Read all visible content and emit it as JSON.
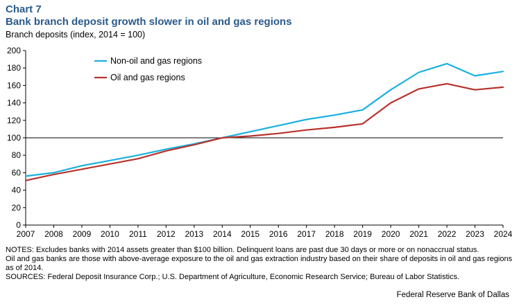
{
  "header": {
    "chart_number": "Chart 7",
    "title": "Bank branch deposit growth slower in oil and gas regions",
    "subtitle": "Branch deposits (index, 2014 = 100)"
  },
  "colors": {
    "title": "#2a5a8c",
    "non_oil": "#1ab0e0",
    "oil": "#b8322c",
    "reference_line": "#000000",
    "axis": "#000000"
  },
  "chart_data": {
    "type": "line",
    "title": "Bank branch deposit growth slower in oil and gas regions",
    "ylabel": "Branch deposits (index, 2014 = 100)",
    "xlabel": "",
    "x": [
      "2007",
      "2008",
      "2009",
      "2010",
      "2011",
      "2012",
      "2013",
      "2014",
      "2015",
      "2016",
      "2017",
      "2018",
      "2019",
      "2020",
      "2021",
      "2022",
      "2023",
      "2024"
    ],
    "series": [
      {
        "name": "Non-oil and gas regions",
        "color": "#1ab0e0",
        "values": [
          56,
          60,
          68,
          74,
          80,
          87,
          93,
          100,
          107,
          114,
          121,
          126,
          132,
          155,
          175,
          185,
          171,
          176
        ]
      },
      {
        "name": "Oil and gas regions",
        "color": "#b8322c",
        "values": [
          51,
          58,
          64,
          70,
          76,
          85,
          92,
          100,
          102,
          105,
          109,
          112,
          116,
          140,
          156,
          162,
          155,
          158
        ]
      }
    ],
    "yticks": [
      0,
      20,
      40,
      60,
      80,
      100,
      120,
      140,
      160,
      180,
      200
    ],
    "ylim": [
      0,
      200
    ],
    "reference_line": 100,
    "grid": false,
    "legend_placement": "top-left"
  },
  "notes": {
    "line1": "NOTES: Excludes banks with 2014 assets greater than $100 billion. Delinquent loans are past due 30 days or more or on nonaccrual status.",
    "line2": "Oil and gas banks are those with above-average exposure to the oil and gas extraction industry based on their share of deposits in oil and gas regions as of 2014.",
    "sources": "SOURCES: Federal Deposit Insurance Corp.; U.S. Department of Agriculture, Economic Research Service; Bureau of Labor Statistics."
  },
  "attribution": "Federal Reserve Bank of Dallas"
}
